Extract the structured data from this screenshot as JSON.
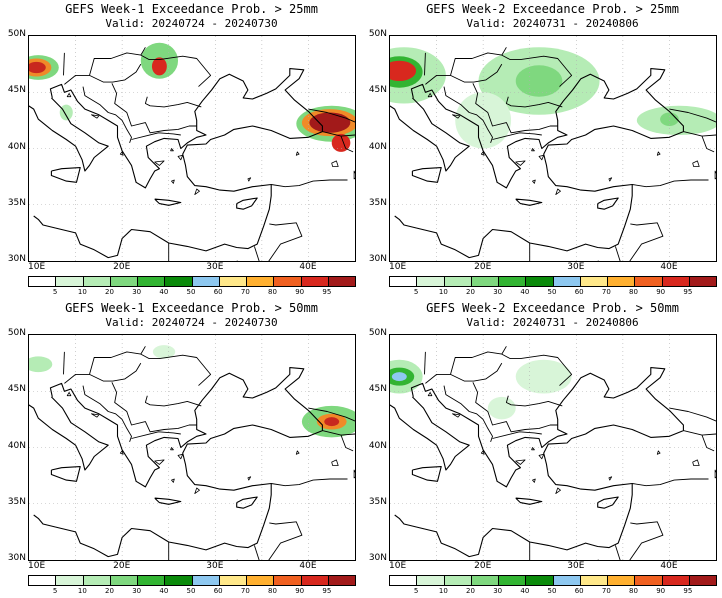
{
  "panels": [
    {
      "title": "GEFS Week-1 Exceedance Prob. > 25mm",
      "valid": "Valid: 20240724 - 20240730",
      "blobs": [
        {
          "lon": 11.0,
          "lat": 47.2,
          "rx": 2.2,
          "ry": 1.1,
          "c": "#7fd87f"
        },
        {
          "lon": 10.8,
          "lat": 47.2,
          "rx": 1.6,
          "ry": 0.8,
          "c": "#f08a28"
        },
        {
          "lon": 10.8,
          "lat": 47.2,
          "rx": 1.0,
          "ry": 0.5,
          "c": "#c8281e"
        },
        {
          "lon": 24.0,
          "lat": 47.8,
          "rx": 2.0,
          "ry": 1.6,
          "c": "#7fd87f"
        },
        {
          "lon": 24.0,
          "lat": 47.3,
          "rx": 0.8,
          "ry": 0.8,
          "c": "#d8281e"
        },
        {
          "lon": 42.5,
          "lat": 42.2,
          "rx": 3.8,
          "ry": 1.6,
          "c": "#7fd87f"
        },
        {
          "lon": 42.3,
          "lat": 42.3,
          "rx": 3.0,
          "ry": 1.2,
          "c": "#f08a28"
        },
        {
          "lon": 42.3,
          "lat": 42.3,
          "rx": 2.2,
          "ry": 0.9,
          "c": "#a21a1a"
        },
        {
          "lon": 43.5,
          "lat": 40.5,
          "rx": 1.0,
          "ry": 0.8,
          "c": "#d8281e"
        },
        {
          "lon": 14.0,
          "lat": 43.2,
          "rx": 0.7,
          "ry": 0.7,
          "c": "#b5ecb5"
        }
      ]
    },
    {
      "title": "GEFS Week-2 Exceedance Prob. > 25mm",
      "valid": "Valid: 20240731 - 20240806",
      "blobs": [
        {
          "lon": 11.5,
          "lat": 46.5,
          "rx": 4.5,
          "ry": 2.5,
          "c": "#b5ecb5"
        },
        {
          "lon": 11.0,
          "lat": 46.8,
          "rx": 2.5,
          "ry": 1.4,
          "c": "#32b432"
        },
        {
          "lon": 11.0,
          "lat": 46.9,
          "rx": 1.8,
          "ry": 0.9,
          "c": "#d8281e"
        },
        {
          "lon": 26.0,
          "lat": 46.0,
          "rx": 6.5,
          "ry": 3.0,
          "c": "#b5ecb5"
        },
        {
          "lon": 26.0,
          "lat": 46.0,
          "rx": 2.5,
          "ry": 1.4,
          "c": "#7fd87f"
        },
        {
          "lon": 20.0,
          "lat": 42.5,
          "rx": 3.0,
          "ry": 2.5,
          "c": "#d8f5d8"
        },
        {
          "lon": 41.0,
          "lat": 42.5,
          "rx": 4.5,
          "ry": 1.3,
          "c": "#b5ecb5"
        },
        {
          "lon": 40.0,
          "lat": 42.6,
          "rx": 1.0,
          "ry": 0.6,
          "c": "#7fd87f"
        }
      ]
    },
    {
      "title": "GEFS Week-1 Exceedance Prob. > 50mm",
      "valid": "Valid: 20240724 - 20240730",
      "blobs": [
        {
          "lon": 11.0,
          "lat": 47.4,
          "rx": 1.5,
          "ry": 0.7,
          "c": "#b5ecb5"
        },
        {
          "lon": 24.5,
          "lat": 48.5,
          "rx": 1.2,
          "ry": 0.6,
          "c": "#d8f5d8"
        },
        {
          "lon": 42.5,
          "lat": 42.3,
          "rx": 3.2,
          "ry": 1.4,
          "c": "#7fd87f"
        },
        {
          "lon": 42.5,
          "lat": 42.3,
          "rx": 1.6,
          "ry": 0.7,
          "c": "#f08a28"
        },
        {
          "lon": 42.5,
          "lat": 42.3,
          "rx": 0.8,
          "ry": 0.4,
          "c": "#c8281e"
        }
      ]
    },
    {
      "title": "GEFS Week-2 Exceedance Prob. > 50mm",
      "valid": "Valid: 20240731 - 20240806",
      "blobs": [
        {
          "lon": 11.0,
          "lat": 46.3,
          "rx": 2.5,
          "ry": 1.5,
          "c": "#b5ecb5"
        },
        {
          "lon": 11.0,
          "lat": 46.3,
          "rx": 1.6,
          "ry": 0.8,
          "c": "#32b432"
        },
        {
          "lon": 11.0,
          "lat": 46.3,
          "rx": 0.8,
          "ry": 0.4,
          "c": "#8ec8f0"
        },
        {
          "lon": 26.5,
          "lat": 46.3,
          "rx": 3.0,
          "ry": 1.5,
          "c": "#d8f5d8"
        },
        {
          "lon": 22.0,
          "lat": 43.5,
          "rx": 1.5,
          "ry": 1.0,
          "c": "#d8f5d8"
        }
      ]
    }
  ],
  "lat_labels": [
    "50N",
    "45N",
    "40N",
    "35N",
    "30N"
  ],
  "lon_labels": [
    "10E",
    "20E",
    "30E",
    "40E"
  ],
  "colorbar": {
    "colors": [
      "#ffffff",
      "#d8f5d8",
      "#b5ecb5",
      "#7fd87f",
      "#32b432",
      "#0a8a0a",
      "#8ec8f0",
      "#ffe88a",
      "#ffb030",
      "#f06020",
      "#d8281e",
      "#a21a1a"
    ],
    "labels": [
      "5",
      "10",
      "20",
      "30",
      "40",
      "50",
      "60",
      "70",
      "80",
      "90",
      "95"
    ]
  },
  "map_extent": {
    "lon_min": 10,
    "lon_max": 45,
    "lat_min": 30,
    "lat_max": 50
  }
}
